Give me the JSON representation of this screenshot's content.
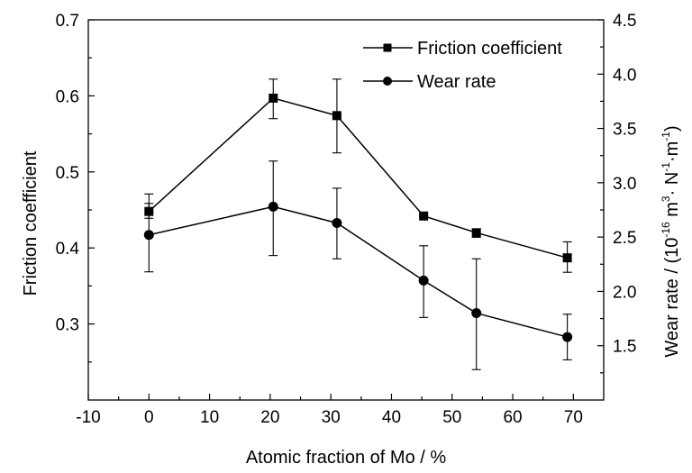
{
  "chart_data": {
    "type": "line",
    "xlabel": "Atomic fraction of Mo / %",
    "ylabel_left": "Friction coefficient",
    "ylabel_right": {
      "prefix": "Wear rate / (10",
      "exp1": "-16",
      "mid1": " m",
      "exp2": "3",
      "mid2": "· N",
      "exp3": "-1",
      "mid3": "·m",
      "exp4": "-1",
      "suffix": ")"
    },
    "xlim": [
      -10,
      75
    ],
    "xticks": [
      "-10",
      "0",
      "10",
      "20",
      "30",
      "40",
      "50",
      "60",
      "70"
    ],
    "ylim_left": [
      0.2,
      0.7
    ],
    "yticks_left": [
      "0.3",
      "0.4",
      "0.5",
      "0.6",
      "0.7"
    ],
    "ylim_right": [
      1.0,
      4.5
    ],
    "yticks_right": [
      "1.5",
      "2.0",
      "2.5",
      "3.0",
      "3.5",
      "4.0",
      "4.5"
    ],
    "legend_position": "top-right",
    "grid": false,
    "series": [
      {
        "name": "Friction coefficient",
        "axis": "left",
        "marker": "square",
        "x": [
          0,
          20.5,
          31,
          45.3,
          54,
          69
        ],
        "y": [
          0.448,
          0.597,
          0.574,
          0.442,
          0.42,
          0.387
        ],
        "err_low": [
          0.439,
          0.57,
          0.525,
          0.442,
          0.414,
          0.368
        ],
        "err_high": [
          0.471,
          0.622,
          0.622,
          0.442,
          0.425,
          0.408
        ]
      },
      {
        "name": "Wear rate",
        "axis": "right",
        "marker": "circle",
        "x": [
          0,
          20.5,
          31,
          45.3,
          54,
          69
        ],
        "y": [
          2.52,
          2.78,
          2.63,
          2.1,
          1.8,
          1.58
        ],
        "err_low": [
          2.18,
          2.33,
          2.3,
          1.76,
          1.28,
          1.37
        ],
        "err_high": [
          2.81,
          3.2,
          2.95,
          2.42,
          2.3,
          1.79
        ]
      }
    ]
  }
}
